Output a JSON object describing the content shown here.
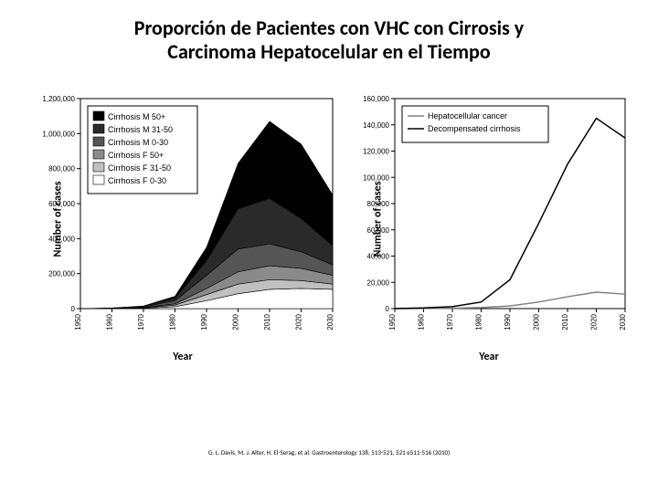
{
  "title_line1": "Proporción de Pacientes con VHC con Cirrosis y",
  "title_line2": "Carcinoma Hepatocelular en el Tiempo",
  "citation": "G. L. Davis, M. J. Alter, H. El-Serag, et al. Gastroenterology 138, 513-521, 521 e511-516 (2010)",
  "axis_ylabel": "Number of cases",
  "axis_xlabel": "Year",
  "left_chart": {
    "type": "stacked-area",
    "xlim": [
      1950,
      2030
    ],
    "xticks": [
      1950,
      1960,
      1970,
      1980,
      1990,
      2000,
      2010,
      2020,
      2030
    ],
    "ylim": [
      0,
      1200000
    ],
    "yticks": [
      0,
      200000,
      400000,
      600000,
      800000,
      1000000,
      1200000
    ],
    "ytick_labels": [
      "0",
      "200,000",
      "400,000",
      "600,000",
      "800,000",
      "1,000,000",
      "1,200,000"
    ],
    "background_color": "#ffffff",
    "axis_color": "#000000",
    "tick_fontsize": 8,
    "legend_box_stroke": "#000000",
    "legend_fontsize": 9,
    "series": [
      {
        "label": "Cirrhosis M 50+",
        "color": "#000000",
        "values": [
          0,
          500,
          2000,
          10000,
          75000,
          260000,
          440000,
          425000,
          290000
        ]
      },
      {
        "label": "Cirrhosis M 31-50",
        "color": "#2a2a2a",
        "values": [
          0,
          800,
          3000,
          15000,
          85000,
          230000,
          260000,
          190000,
          110000
        ]
      },
      {
        "label": "Cirrhosis M 0-30",
        "color": "#555555",
        "values": [
          0,
          1200,
          4000,
          18000,
          75000,
          130000,
          125000,
          95000,
          60000
        ]
      },
      {
        "label": "Cirrhosis F 50+",
        "color": "#8a8a8a",
        "values": [
          0,
          300,
          1500,
          7000,
          35000,
          70000,
          80000,
          70000,
          50000
        ]
      },
      {
        "label": "Cirrhosis F 31-50",
        "color": "#c0c0c0",
        "values": [
          0,
          400,
          2000,
          9000,
          35000,
          55000,
          55000,
          45000,
          30000
        ]
      },
      {
        "label": "Cirrhosis F 0-30",
        "color": "#ffffff",
        "values": [
          0,
          500,
          2500,
          11000,
          45000,
          85000,
          110000,
          115000,
          110000
        ]
      }
    ]
  },
  "right_chart": {
    "type": "line",
    "xlim": [
      1950,
      2030
    ],
    "xticks": [
      1950,
      1960,
      1970,
      1980,
      1990,
      2000,
      2010,
      2020,
      2030
    ],
    "ylim": [
      0,
      160000
    ],
    "yticks": [
      0,
      20000,
      40000,
      60000,
      80000,
      100000,
      120000,
      140000,
      160000
    ],
    "ytick_labels": [
      "0",
      "20,000",
      "40,000",
      "60,000",
      "80,000",
      "100,000",
      "120,000",
      "140,000",
      "160,000"
    ],
    "background_color": "#ffffff",
    "axis_color": "#000000",
    "tick_fontsize": 8,
    "legend_box_stroke": "#000000",
    "legend_fontsize": 9,
    "series": [
      {
        "label": "Hepatocellular cancer",
        "color": "#808080",
        "line_width": 1.5,
        "values": [
          0,
          100,
          300,
          800,
          2000,
          5000,
          9000,
          12500,
          11000
        ]
      },
      {
        "label": "Decompensated cirrhosis",
        "color": "#000000",
        "line_width": 1.5,
        "values": [
          0,
          500,
          1500,
          5000,
          22000,
          65000,
          110000,
          145000,
          130000
        ]
      }
    ]
  }
}
